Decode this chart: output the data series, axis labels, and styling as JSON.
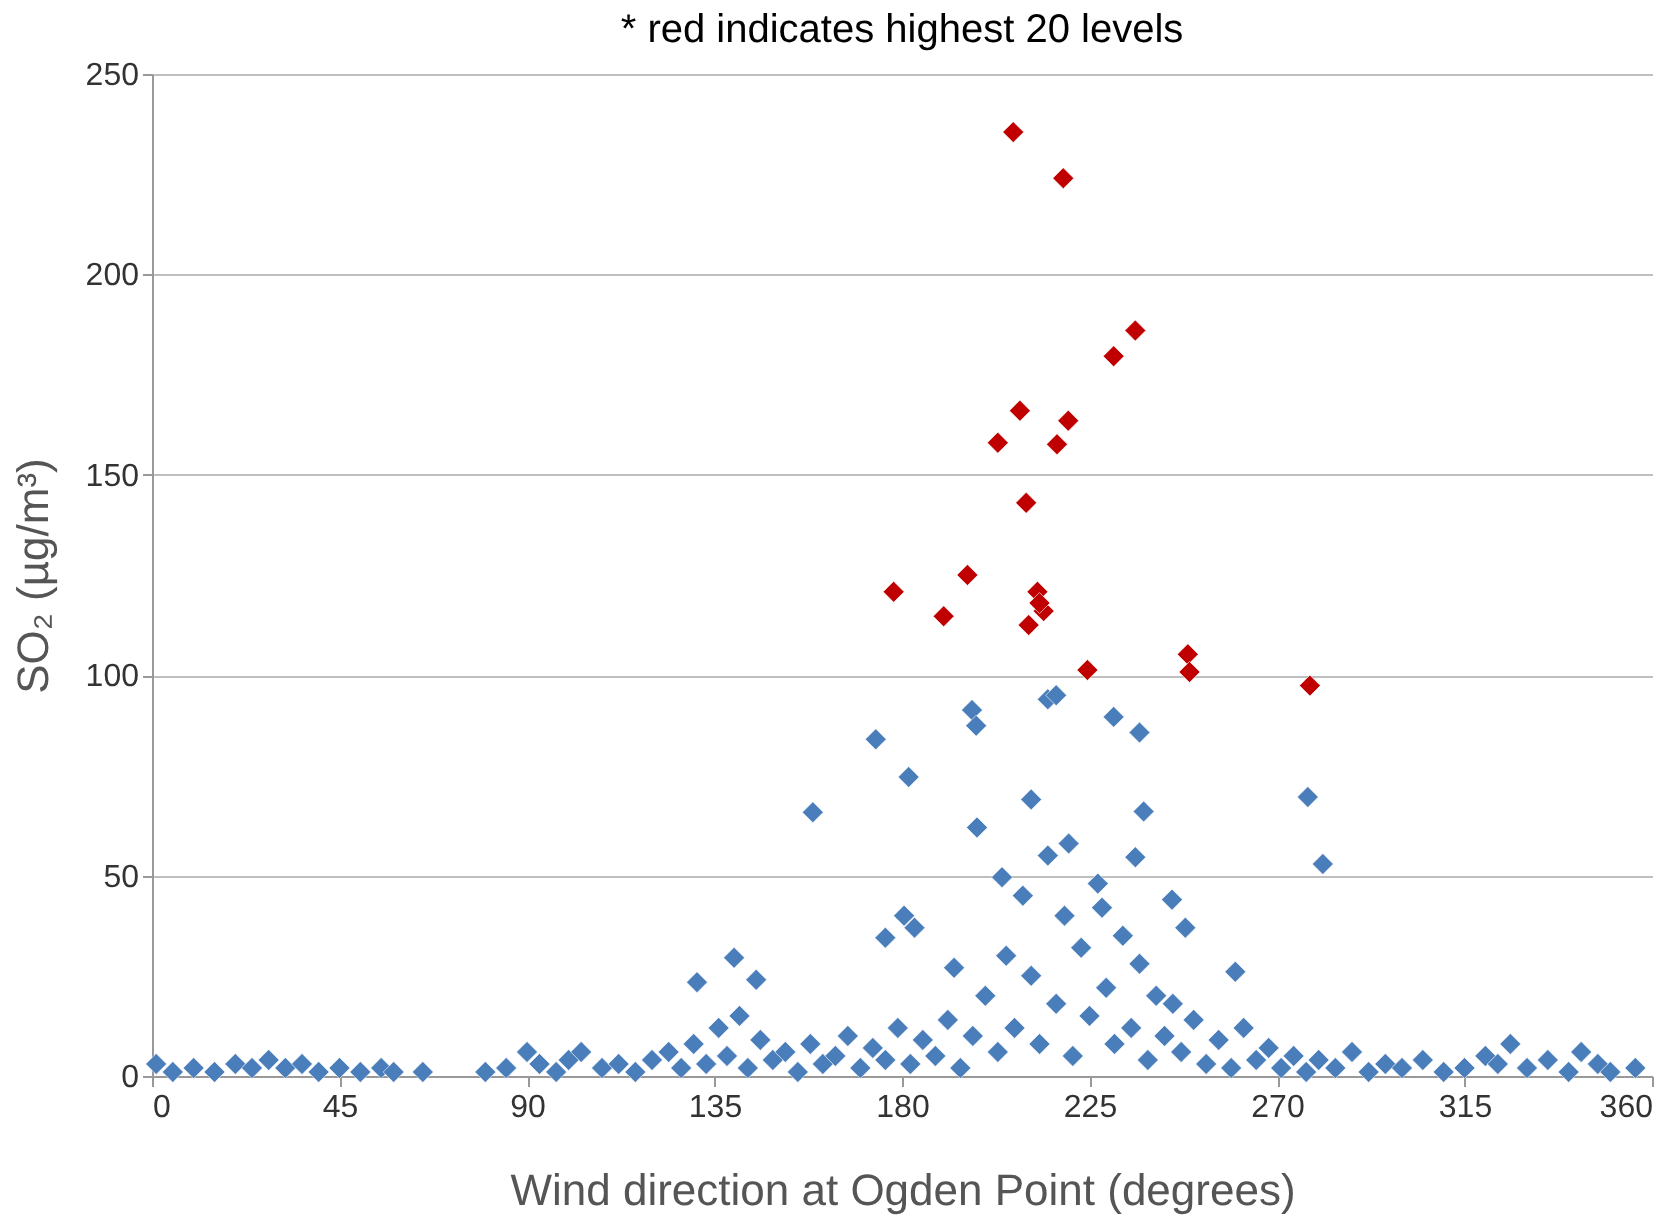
{
  "chart_data": {
    "type": "scatter",
    "title": "* red indicates highest 20 levels",
    "xlabel": "Wind direction at Ogden Point (degrees)",
    "ylabel": "SO₂ (µg/m³)",
    "xlim": [
      0,
      360
    ],
    "xticks": [
      0,
      45,
      90,
      135,
      180,
      225,
      270,
      315,
      360
    ],
    "ylim": [
      0,
      250
    ],
    "yticks": [
      0,
      50,
      100,
      150,
      200,
      250
    ],
    "grid": "y",
    "legend": false,
    "marker": "diamond",
    "series": [
      {
        "color": "#4a7ebb",
        "x": [
          1,
          5,
          10,
          15,
          20,
          24,
          28,
          32,
          36,
          40,
          45,
          50,
          55,
          58,
          65,
          80,
          85,
          90,
          93,
          97,
          100,
          103,
          108,
          112,
          116,
          120,
          124,
          127,
          130,
          133,
          136,
          138,
          141,
          143,
          146,
          149,
          152,
          155,
          158,
          161,
          164,
          167,
          170,
          173,
          176,
          179,
          182,
          185,
          188,
          191,
          194,
          197,
          200,
          203,
          205,
          207,
          209,
          211,
          213,
          215,
          217,
          219,
          221,
          223,
          225,
          227,
          229,
          231,
          233,
          235,
          237,
          239,
          241,
          243,
          245,
          247,
          250,
          253,
          256,
          259,
          262,
          265,
          268,
          271,
          274,
          277,
          280,
          284,
          288,
          292,
          296,
          300,
          305,
          310,
          315,
          320,
          323,
          326,
          330,
          335,
          340,
          343,
          347,
          350,
          356,
          173.7,
          181.6,
          158.6,
          196.8,
          197.8,
          215,
          217,
          230.8,
          237,
          277.4,
          281,
          139.7,
          130.8,
          145,
          180.5,
          176,
          183,
          198,
          192.5,
          211,
          238,
          236,
          244.8,
          248,
          260,
          204,
          220,
          228
        ],
        "values": [
          3,
          1,
          2,
          1,
          3,
          2,
          4,
          2,
          3,
          1,
          2,
          1,
          2,
          1,
          1,
          1,
          2,
          6,
          3,
          1,
          4,
          6,
          2,
          3,
          1,
          4,
          6,
          2,
          8,
          3,
          12,
          5,
          15,
          2,
          9,
          4,
          6,
          1,
          8,
          3,
          5,
          10,
          2,
          7,
          4,
          12,
          3,
          9,
          5,
          14,
          2,
          10,
          20,
          6,
          30,
          12,
          45,
          25,
          8,
          55,
          18,
          40,
          5,
          32,
          15,
          48,
          22,
          8,
          35,
          12,
          28,
          4,
          20,
          10,
          18,
          6,
          14,
          3,
          9,
          2,
          12,
          4,
          7,
          2,
          5,
          1,
          4,
          2,
          6,
          1,
          3,
          2,
          4,
          1,
          2,
          5,
          3,
          8,
          2,
          4,
          1,
          6,
          3,
          1,
          2,
          84,
          74.6,
          65.8,
          91.3,
          87.4,
          94,
          95,
          89.6,
          85.7,
          69.6,
          52.9,
          29.5,
          23.4,
          24,
          40,
          34.5,
          37,
          62,
          27,
          69,
          66,
          54.6,
          44,
          37,
          26,
          49.6,
          58,
          42
        ]
      },
      {
        "color": "#c00000",
        "x": [
          206.7,
          218.7,
          236,
          230.8,
          208.3,
          219.9,
          203,
          217.2,
          209.8,
          195.7,
          178,
          212.5,
          190,
          214,
          210.4,
          224.5,
          248.6,
          249,
          277.9,
          213
        ],
        "values": [
          235.5,
          224,
          186,
          179.6,
          166,
          163.5,
          158,
          157.6,
          143,
          125,
          120.8,
          120.8,
          114.7,
          116,
          112.5,
          101.3,
          105.2,
          100.8,
          97.4,
          118
        ]
      }
    ]
  }
}
